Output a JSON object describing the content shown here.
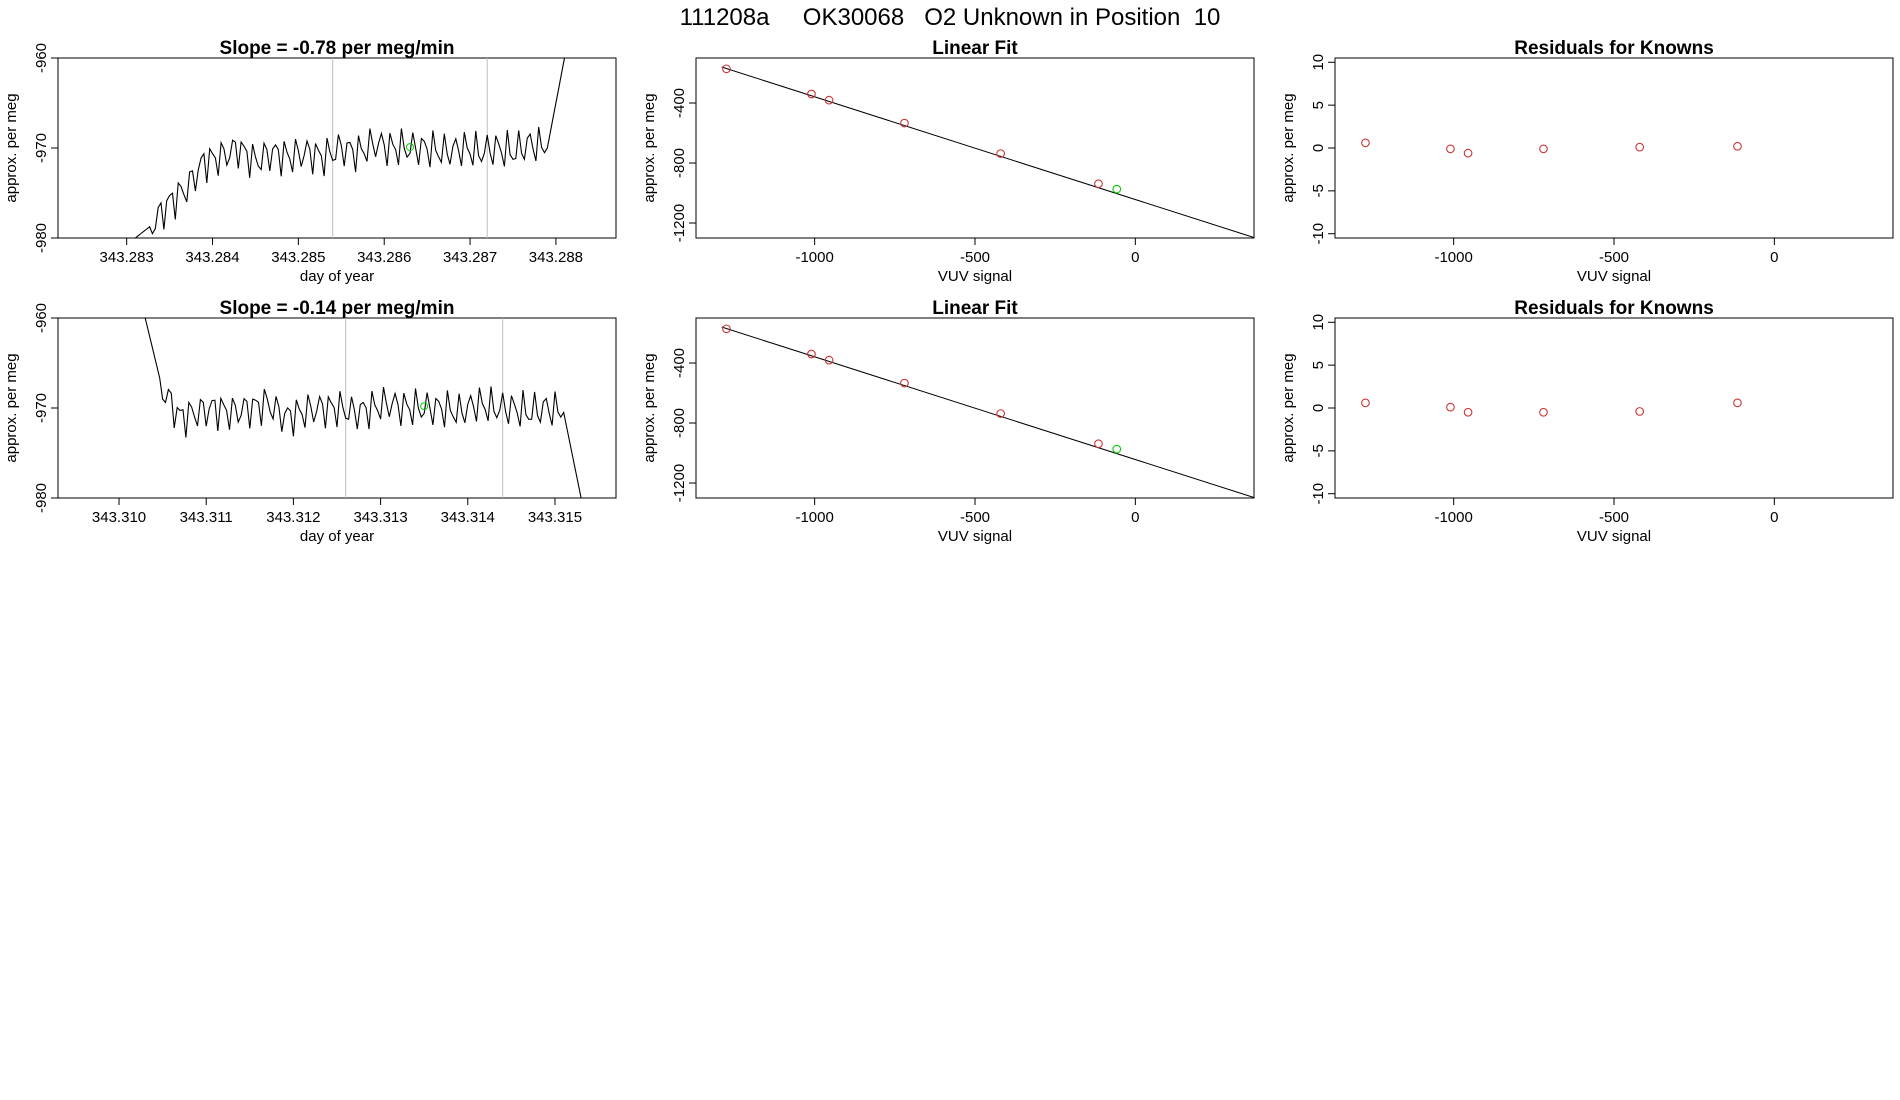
{
  "figure_title": "111208a     OK30068   O2 Unknown in Position  10",
  "colors": {
    "line": "#000000",
    "known_point": "#cd3333",
    "unknown_point": "#00cc00",
    "marker_line": "#bebebe",
    "fit_line": "#000000"
  },
  "chart_data": [
    {
      "type": "line",
      "title": "Slope =  -0.78  per meg/min",
      "xlabel": "day of year",
      "ylabel": "approx. per meg",
      "xlim": [
        343.2822,
        343.2887
      ],
      "ylim": [
        -980,
        -960
      ],
      "xticks": [
        "343.283",
        "343.284",
        "343.285",
        "343.286",
        "343.287",
        "343.288"
      ],
      "yticks": [
        "-960",
        "-970",
        "-980"
      ],
      "markers_x": [
        343.2854,
        343.2872
      ],
      "unknown_point": {
        "x": 343.2863,
        "y": -969.9
      },
      "x": [
        343.2831,
        343.2833,
        343.2835,
        343.2837,
        343.2839,
        343.2841,
        343.2843,
        343.2845,
        343.2847,
        343.2849,
        343.2851,
        343.2853,
        343.2855,
        343.2857,
        343.2859,
        343.2861,
        343.2863,
        343.2865,
        343.2867,
        343.2869,
        343.2871,
        343.2873,
        343.2875,
        343.2877,
        343.2879,
        343.2881
      ],
      "y": [
        -980,
        -978.5,
        -976,
        -974.5,
        -971.5,
        -971,
        -970,
        -971.5,
        -970.5,
        -971,
        -970.5,
        -971,
        -970,
        -970.5,
        -969.5,
        -970,
        -970,
        -970,
        -970.5,
        -970,
        -970.5,
        -970,
        -970.5,
        -969.5,
        -970,
        -960
      ]
    },
    {
      "type": "scatter",
      "title": "Linear Fit",
      "xlabel": "VUV signal",
      "ylabel": "approx. per meg",
      "xlim": [
        -1370,
        370
      ],
      "ylim": [
        -1300,
        -100
      ],
      "xticks": [
        "-1000",
        "-500",
        "0"
      ],
      "yticks": [
        "-400",
        "-800",
        "-1200"
      ],
      "known_points": {
        "x": [
          -1275,
          -1010,
          -955,
          -720,
          -420,
          -115
        ],
        "y": [
          -172,
          -340,
          -381,
          -534,
          -737,
          -938
        ]
      },
      "unknown_point": {
        "x": -58,
        "y": -974
      },
      "fit_line": {
        "x": [
          -1290,
          370
        ],
        "y": [
          -160,
          -1297
        ]
      }
    },
    {
      "type": "scatter",
      "title": "Residuals for Knowns",
      "xlabel": "VUV signal",
      "ylabel": "approx. per meg",
      "xlim": [
        -1370,
        370
      ],
      "ylim": [
        -10.5,
        10.5
      ],
      "xticks": [
        "-1000",
        "-500",
        "0"
      ],
      "yticks": [
        "10",
        "5",
        "0",
        "-5",
        "-10"
      ],
      "points": {
        "x": [
          -1275,
          -1010,
          -955,
          -720,
          -420,
          -115
        ],
        "y": [
          0.6,
          -0.1,
          -0.6,
          -0.1,
          0.1,
          0.2
        ]
      }
    },
    {
      "type": "line",
      "title": "Slope =  -0.14  per meg/min",
      "xlabel": "day of year",
      "ylabel": "approx. per meg",
      "xlim": [
        343.3093,
        343.3157
      ],
      "ylim": [
        -980,
        -960
      ],
      "xticks": [
        "343.310",
        "343.311",
        "343.312",
        "343.313",
        "343.314",
        "343.315"
      ],
      "yticks": [
        "-960",
        "-970",
        "-980"
      ],
      "markers_x": [
        343.3126,
        343.3144
      ],
      "unknown_point": {
        "x": 343.3135,
        "y": -969.8
      },
      "x": [
        343.3103,
        343.3105,
        343.3107,
        343.3109,
        343.3111,
        343.3113,
        343.3115,
        343.3117,
        343.3119,
        343.3121,
        343.3123,
        343.3125,
        343.3127,
        343.3129,
        343.3131,
        343.3133,
        343.3135,
        343.3137,
        343.3139,
        343.3141,
        343.3143,
        343.3145,
        343.3147,
        343.3149,
        343.3151,
        343.3153
      ],
      "y": [
        -960,
        -968,
        -971,
        -970.5,
        -970,
        -970.5,
        -970,
        -969.5,
        -971,
        -970.5,
        -970,
        -970,
        -970.5,
        -970,
        -969.5,
        -970,
        -970,
        -970,
        -970.5,
        -969.5,
        -970,
        -970,
        -970.5,
        -970,
        -970.5,
        -980
      ]
    },
    {
      "type": "scatter",
      "title": "Linear Fit",
      "xlabel": "VUV signal",
      "ylabel": "approx. per meg",
      "xlim": [
        -1370,
        370
      ],
      "ylim": [
        -1300,
        -100
      ],
      "xticks": [
        "-1000",
        "-500",
        "0"
      ],
      "yticks": [
        "-400",
        "-800",
        "-1200"
      ],
      "known_points": {
        "x": [
          -1275,
          -1010,
          -955,
          -720,
          -420,
          -115
        ],
        "y": [
          -172,
          -340,
          -381,
          -534,
          -737,
          -938
        ]
      },
      "unknown_point": {
        "x": -58,
        "y": -974
      },
      "fit_line": {
        "x": [
          -1290,
          370
        ],
        "y": [
          -160,
          -1297
        ]
      }
    },
    {
      "type": "scatter",
      "title": "Residuals for Knowns",
      "xlabel": "VUV signal",
      "ylabel": "approx. per meg",
      "xlim": [
        -1370,
        370
      ],
      "ylim": [
        -10.5,
        10.5
      ],
      "xticks": [
        "-1000",
        "-500",
        "0"
      ],
      "yticks": [
        "10",
        "5",
        "0",
        "-5",
        "-10"
      ],
      "points": {
        "x": [
          -1275,
          -1010,
          -955,
          -720,
          -420,
          -115
        ],
        "y": [
          0.6,
          0.1,
          -0.5,
          -0.5,
          -0.4,
          0.6
        ]
      }
    }
  ]
}
